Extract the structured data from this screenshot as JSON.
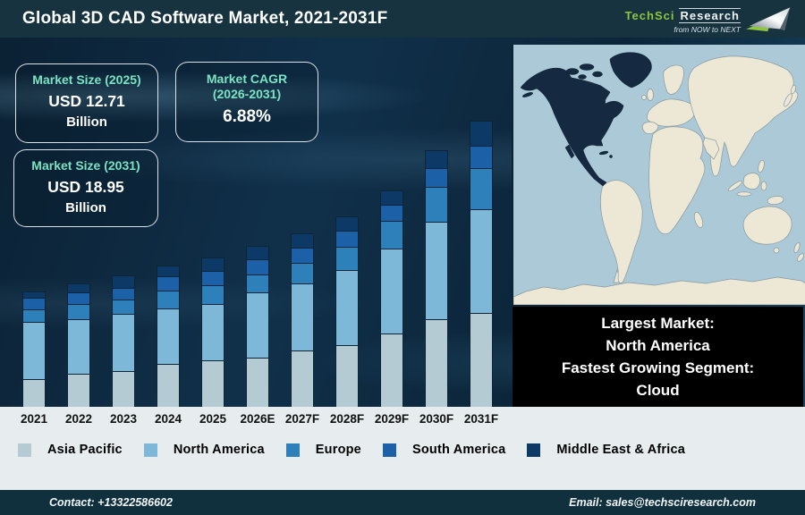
{
  "header": {
    "title": "Global 3D CAD Software Market, 2021-2031F",
    "logo": {
      "brand_primary": "TechSci",
      "brand_secondary": "Research",
      "tagline": "from NOW to NEXT",
      "arrow_icon": "arrow-up-right",
      "brand_green": "#8dc63f"
    }
  },
  "stats": [
    {
      "label": "Market Size (2025)",
      "value": "USD 12.71",
      "unit": "Billion"
    },
    {
      "label": "Market CAGR",
      "label_line2": "(2026-2031)",
      "value": "6.88%"
    },
    {
      "label": "Market Size (2031)",
      "value": "USD 18.95",
      "unit": "Billion"
    }
  ],
  "chart_data": {
    "type": "bar",
    "stacked": true,
    "title": "Global 3D CAD Software Market, 2021-2031F",
    "categories": [
      "2021",
      "2022",
      "2023",
      "2024",
      "2025",
      "2026E",
      "2027F",
      "2028F",
      "2029F",
      "2030F",
      "2031F"
    ],
    "series": [
      {
        "name": "Asia Pacific",
        "color": "#b5cbd3",
        "values": [
          31,
          37,
          40,
          48,
          52,
          55,
          63,
          69,
          82,
          98,
          105
        ]
      },
      {
        "name": "North America",
        "color": "#7db8d9",
        "values": [
          64,
          61,
          64,
          62,
          63,
          73,
          75,
          84,
          95,
          109,
          116
        ]
      },
      {
        "name": "Europe",
        "color": "#2e80ba",
        "values": [
          14,
          17,
          16,
          20,
          21,
          20,
          23,
          26,
          31,
          39,
          46
        ]
      },
      {
        "name": "South America",
        "color": "#1c60a8",
        "values": [
          13,
          13,
          13,
          16,
          16,
          17,
          17,
          18,
          18,
          21,
          25
        ]
      },
      {
        "name": "Middle East & Africa",
        "color": "#0c3965",
        "values": [
          7,
          10,
          14,
          12,
          15,
          15,
          16,
          16,
          16,
          20,
          28
        ]
      }
    ],
    "stack_order_bottom_to_top": [
      "Asia Pacific",
      "North America",
      "Europe",
      "South America",
      "Middle East & Africa"
    ],
    "value_axis": "none shown - heights are illustrative relative units (px)",
    "legend_position": "bottom",
    "grid": false
  },
  "map_panel": {
    "highlighted_region": "North America",
    "ocean_color": "#abc9d7",
    "land_color": "#ece8d5",
    "highlight_color": "#152a40"
  },
  "info_box": {
    "lines": [
      "Largest Market:",
      "North America",
      "Fastest Growing Segment:",
      "Cloud"
    ]
  },
  "footer": {
    "contact": "Contact: +13322586602",
    "email": "Email: sales@techsciresearch.com"
  }
}
